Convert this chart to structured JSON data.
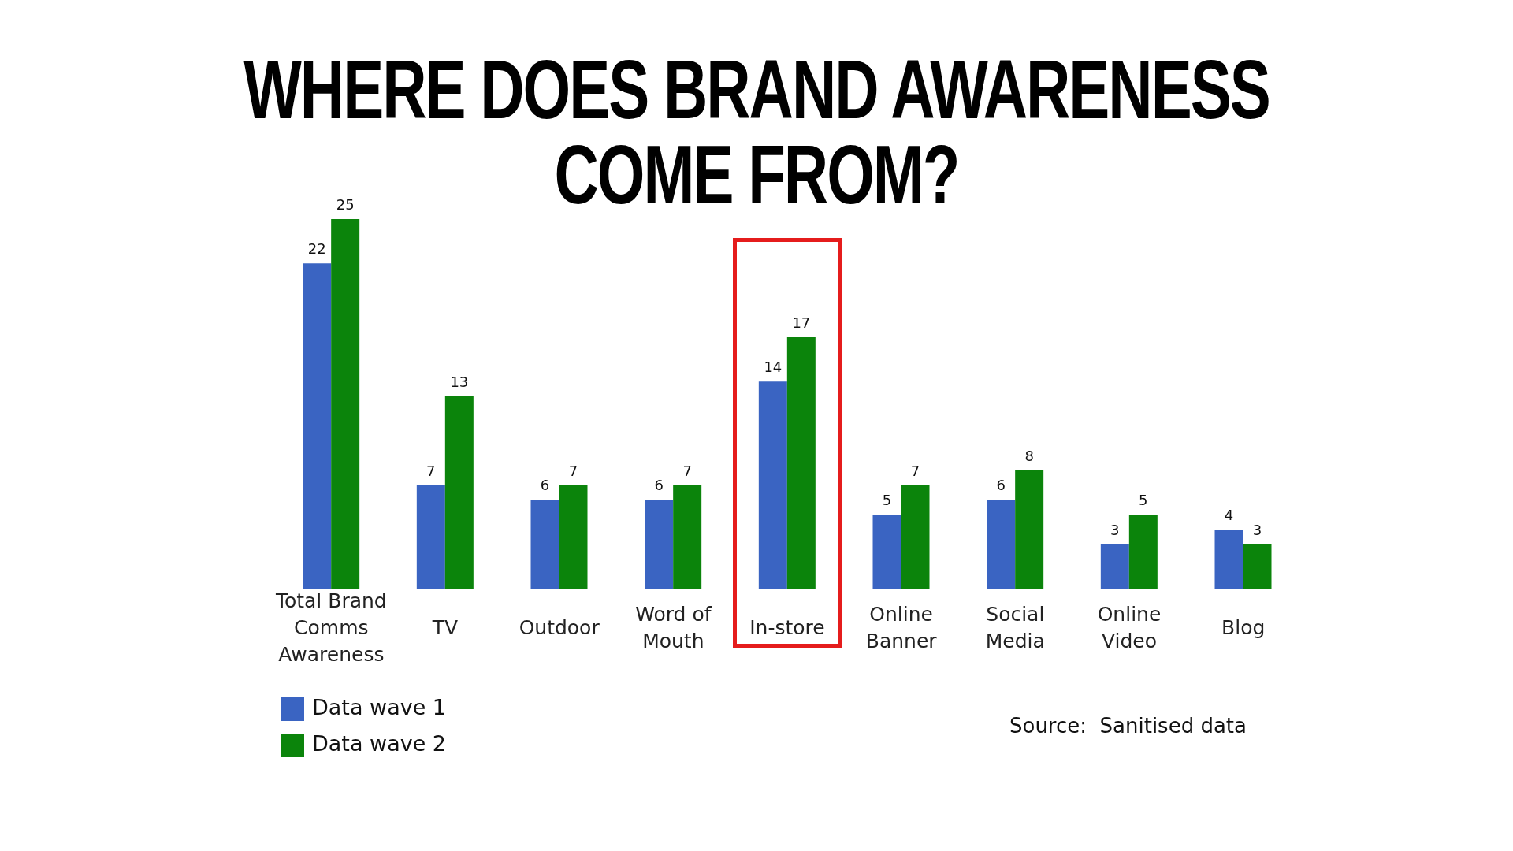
{
  "chart_data": {
    "type": "bar",
    "title": "WHERE DOES BRAND AWARENESS COME FROM?",
    "categories": [
      "Total Brand Comms Awareness",
      "TV",
      "Outdoor",
      "Word of Mouth",
      "In-store",
      "Online Banner",
      "Social Media",
      "Online Video",
      "Blog"
    ],
    "series": [
      {
        "name": "Data wave 1",
        "color": "#3a64c2",
        "values": [
          22,
          7,
          6,
          6,
          14,
          5,
          6,
          3,
          4
        ]
      },
      {
        "name": "Data wave 2",
        "color": "#0b840b",
        "values": [
          25,
          13,
          7,
          7,
          17,
          7,
          8,
          5,
          3
        ]
      }
    ],
    "data_labels": true,
    "legend": "bottom left",
    "grid": false,
    "annotations": [
      "Source:  Sanitised data"
    ]
  }
}
